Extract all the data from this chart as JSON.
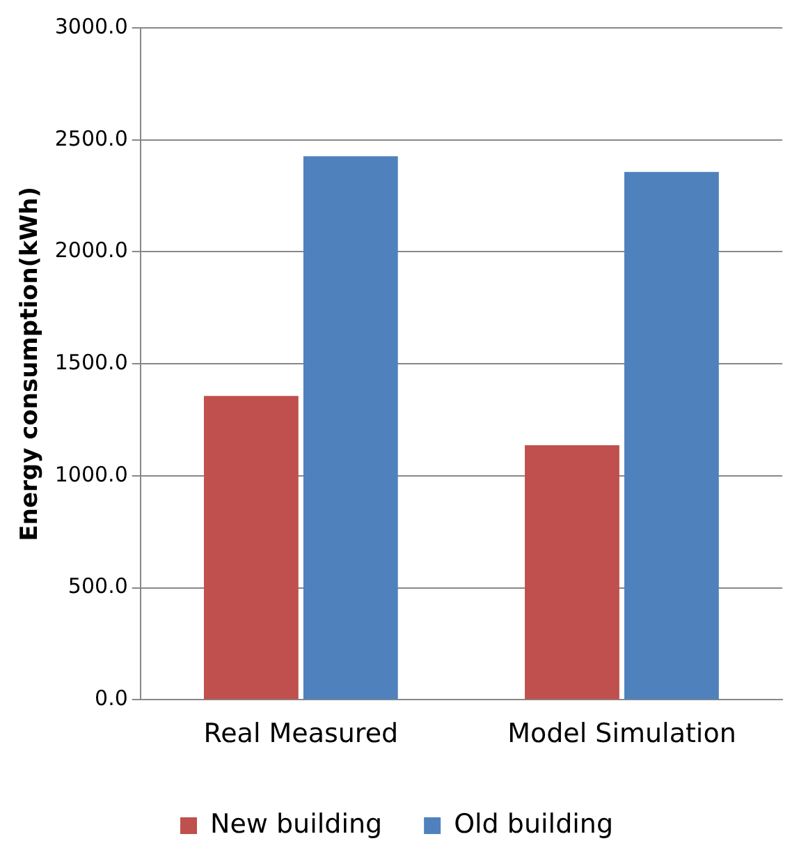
{
  "chart_data": {
    "type": "bar",
    "ylabel": "Energy consumption(kWh)",
    "categories": [
      "Real Measured",
      "Model Simulation"
    ],
    "series": [
      {
        "name": "New building",
        "color": "#c0504d",
        "values": [
          1357,
          1137
        ]
      },
      {
        "name": "Old building",
        "color": "#4f81bd",
        "values": [
          2427,
          2357
        ]
      }
    ],
    "ylim": [
      0,
      3000
    ],
    "yticks": [
      {
        "value": 0,
        "label": "0.0"
      },
      {
        "value": 500,
        "label": "500.0"
      },
      {
        "value": 1000,
        "label": "1000.0"
      },
      {
        "value": 1500,
        "label": "1500.0"
      },
      {
        "value": 2000,
        "label": "2000.0"
      },
      {
        "value": 2500,
        "label": "2500.0"
      },
      {
        "value": 3000,
        "label": "3000.0"
      }
    ],
    "grid": "y",
    "legend": "bottom"
  }
}
